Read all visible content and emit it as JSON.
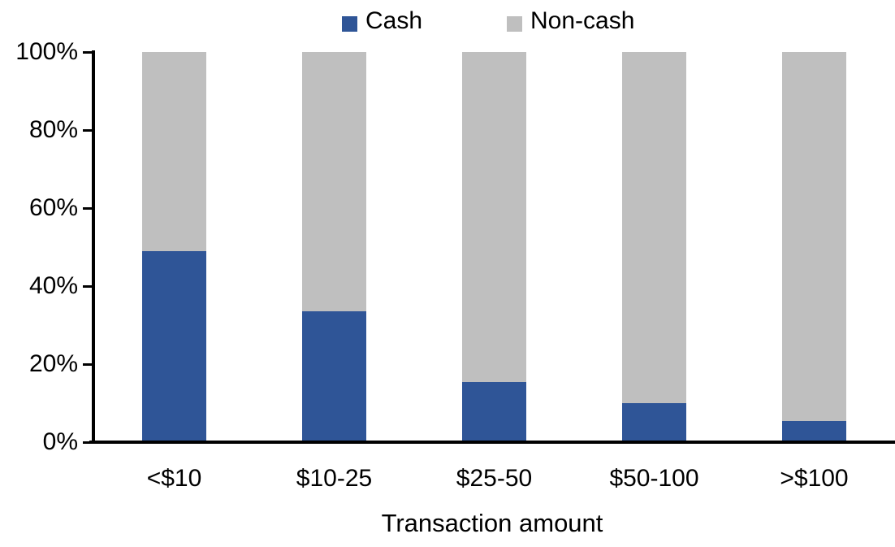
{
  "chart_data": {
    "type": "bar",
    "stacked": true,
    "percent_stacked": true,
    "title": "",
    "xlabel": "Transaction amount",
    "ylabel": "",
    "categories": [
      "<$10",
      "$10-25",
      "$25-50",
      "$50-100",
      ">$100"
    ],
    "series": [
      {
        "name": "Cash",
        "color": "#2F5597",
        "values": [
          49,
          33.5,
          15.5,
          10,
          5.5
        ]
      },
      {
        "name": "Non-cash",
        "color": "#BFBFBF",
        "values": [
          51,
          66.5,
          84.5,
          90,
          94.5
        ]
      }
    ],
    "ylim": [
      0,
      100
    ],
    "ytick_values": [
      0,
      20,
      40,
      60,
      80,
      100
    ],
    "ytick_labels": [
      "0%",
      "20%",
      "40%",
      "60%",
      "80%",
      "100%"
    ],
    "grid": false,
    "legend_position": "top"
  },
  "colors": {
    "axis": "#000000",
    "text": "#000000",
    "background": "#FFFFFF",
    "cash": "#2F5597",
    "non_cash": "#BFBFBF"
  }
}
